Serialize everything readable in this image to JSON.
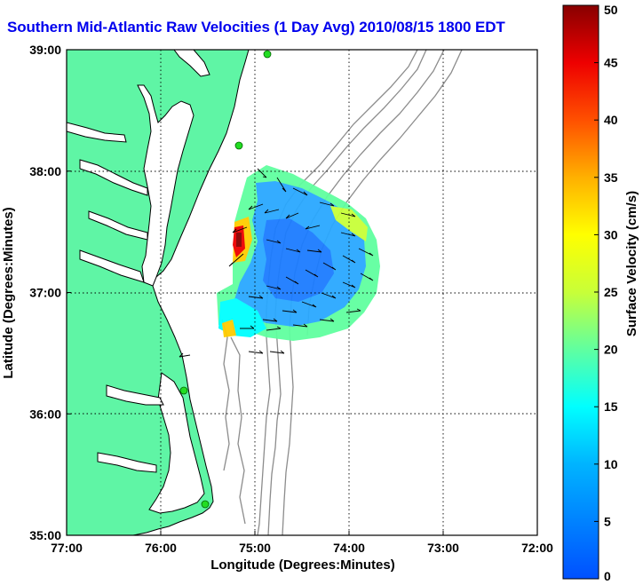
{
  "title": "Southern Mid-Atlantic Raw Velocities (1 Day Avg) 2010/08/15 1800 EDT",
  "map": {
    "xlabel": "Longitude (Degrees:Minutes)",
    "ylabel": "Latitude (Degrees:Minutes)",
    "lon_range": [
      -77,
      -72
    ],
    "lat_range": [
      35,
      39
    ],
    "x_ticks": [
      "77:00",
      "76:00",
      "75:00",
      "74:00",
      "73:00",
      "72:00"
    ],
    "y_ticks": [
      "39:00",
      "38:00",
      "37:00",
      "36:00",
      "35:00"
    ],
    "grid": "dotted",
    "colors": {
      "land": "#5ff5a5",
      "water": "#ffffff",
      "coastline": "#000000",
      "bathymetry": "#8c8c8c",
      "station": "#22dd22"
    }
  },
  "colorbar": {
    "label": "Surface Velocity (cm/s)",
    "min": 0,
    "max": 50,
    "ticks": [
      "50",
      "45",
      "40",
      "35",
      "30",
      "25",
      "20",
      "15",
      "10",
      "5",
      "0"
    ],
    "colormap": "jet"
  }
}
